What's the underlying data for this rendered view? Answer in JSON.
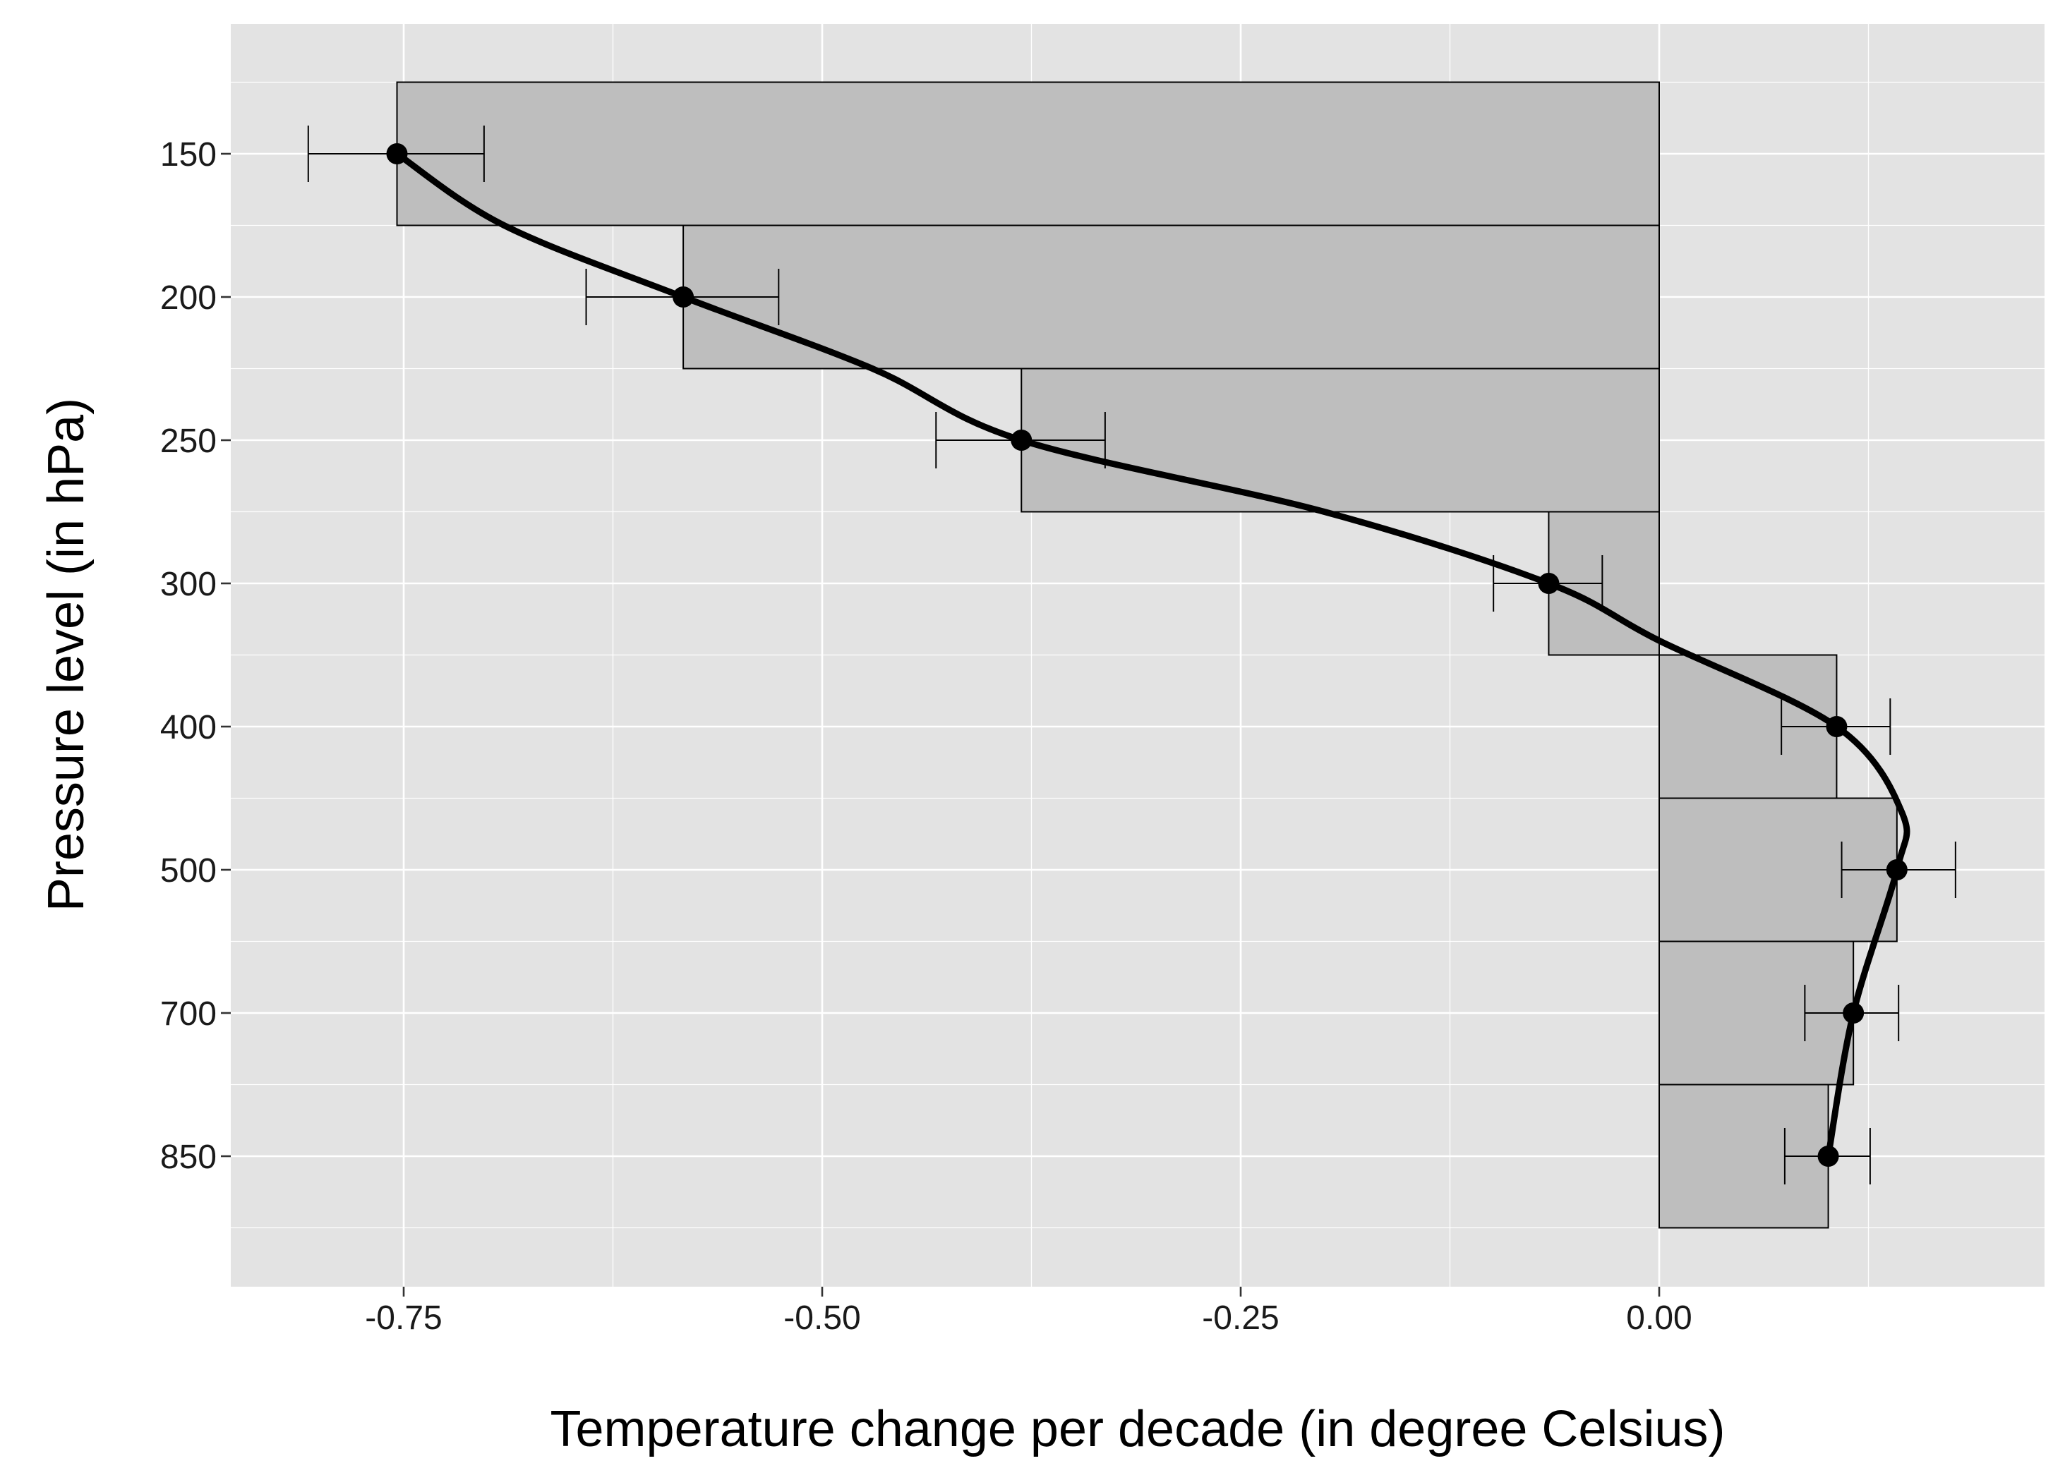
{
  "chart_data": {
    "type": "bar",
    "orientation": "horizontal",
    "title": "",
    "xlabel": "Temperature change per decade (in degree Celsius)",
    "ylabel": "Pressure level (in hPa)",
    "xlim": [
      -0.855,
      0.225
    ],
    "x_ticks": [
      -0.75,
      -0.5,
      -0.25,
      0.0
    ],
    "x_tick_labels": [
      "-0.75",
      "-0.50",
      "-0.25",
      "0.00"
    ],
    "categories": [
      "150",
      "200",
      "250",
      "300",
      "400",
      "500",
      "700",
      "850"
    ],
    "values": [
      -0.754,
      -0.583,
      -0.381,
      -0.066,
      0.106,
      0.142,
      0.116,
      0.101
    ],
    "error_low": [
      -0.807,
      -0.641,
      -0.432,
      -0.099,
      0.073,
      0.109,
      0.087,
      0.075
    ],
    "error_high": [
      -0.702,
      -0.526,
      -0.331,
      -0.034,
      0.138,
      0.177,
      0.143,
      0.126
    ],
    "smooth_trend": {
      "type": "line",
      "description": "smooth curve through point estimates",
      "x": [
        -0.754,
        -0.69,
        -0.583,
        -0.47,
        -0.381,
        -0.2,
        -0.066,
        0.0,
        0.106,
        0.145,
        0.142,
        0.116,
        0.101
      ],
      "y_position": [
        0,
        0.5,
        1,
        1.5,
        2,
        2.5,
        3,
        3.4,
        4,
        4.6,
        5,
        6,
        7
      ]
    },
    "colors": {
      "panel_background": "#e3e3e3",
      "grid": "#ffffff",
      "bar_fill": "#bebebe",
      "bar_outline": "#000000",
      "points": "#000000"
    },
    "grid": true,
    "legend": "none"
  }
}
